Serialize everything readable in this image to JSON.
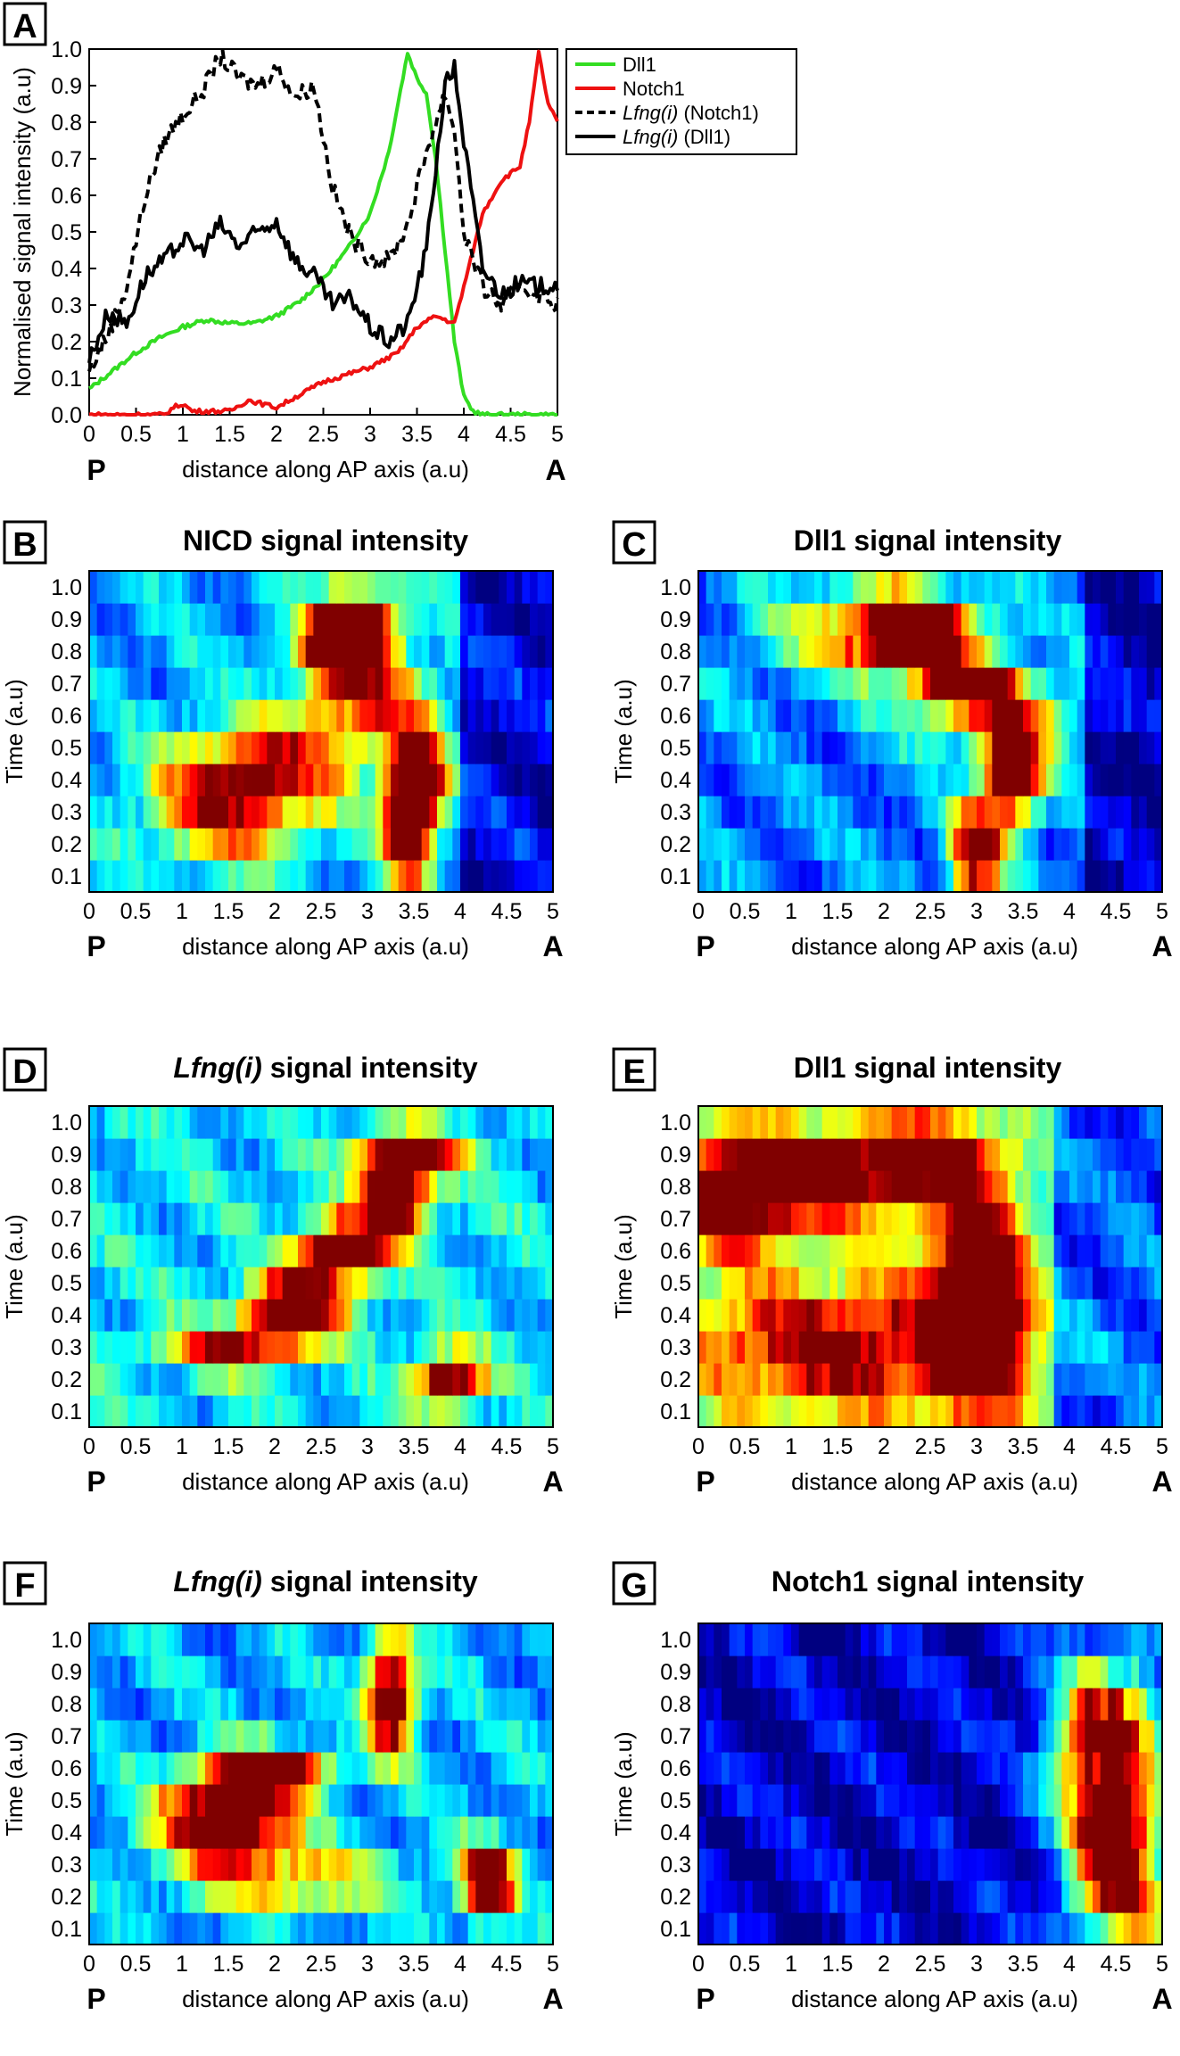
{
  "figure": {
    "p_label": "P",
    "a_label": "A",
    "xlabel": "distance along AP axis (a.u)",
    "ylabel_time": "Time (a.u)"
  },
  "colors": {
    "dll1": "#33dd22",
    "notch1": "#ee1111",
    "lfng": "#000000"
  },
  "chart_data": [
    {
      "panel": "A",
      "type": "line",
      "title": "",
      "xlabel": "distance along AP axis (a.u)",
      "ylabel": "Normalised signal intensity (a.u)",
      "xlim": [
        0,
        5
      ],
      "ylim": [
        0,
        1
      ],
      "xticks": [
        "0",
        "0.5",
        "1",
        "1.5",
        "2",
        "2.5",
        "3",
        "3.5",
        "4",
        "4.5",
        "5"
      ],
      "yticks": [
        "0.0",
        "0.1",
        "0.2",
        "0.3",
        "0.4",
        "0.5",
        "0.6",
        "0.7",
        "0.8",
        "0.9",
        "1.0"
      ],
      "series": [
        {
          "name": "Dll1",
          "color": "#33dd22",
          "style": "solid",
          "x": [
            0,
            0.25,
            0.5,
            0.75,
            1,
            1.25,
            1.5,
            1.75,
            2,
            2.25,
            2.5,
            2.75,
            3,
            3.2,
            3.4,
            3.5,
            3.6,
            3.7,
            3.8,
            3.9,
            4.0,
            4.1,
            4.2,
            4.5,
            5
          ],
          "y": [
            0.07,
            0.12,
            0.17,
            0.21,
            0.24,
            0.26,
            0.25,
            0.25,
            0.27,
            0.31,
            0.37,
            0.45,
            0.55,
            0.72,
            0.99,
            0.92,
            0.88,
            0.7,
            0.45,
            0.2,
            0.05,
            0.01,
            0,
            0,
            0
          ]
        },
        {
          "name": "Notch1",
          "color": "#ee1111",
          "style": "solid",
          "x": [
            0,
            0.8,
            0.9,
            1.0,
            1.1,
            1.5,
            1.7,
            2.0,
            2.5,
            3.0,
            3.3,
            3.5,
            3.7,
            3.9,
            4.0,
            4.2,
            4.4,
            4.6,
            4.7,
            4.8,
            4.9,
            5
          ],
          "y": [
            0,
            0,
            0.02,
            0.03,
            0.01,
            0.01,
            0.04,
            0.02,
            0.09,
            0.13,
            0.17,
            0.24,
            0.27,
            0.25,
            0.35,
            0.55,
            0.64,
            0.68,
            0.8,
            0.99,
            0.85,
            0.8
          ]
        },
        {
          "name": "Lfng(i) (Notch1)",
          "color": "#000000",
          "style": "dashed",
          "x": [
            0,
            0.2,
            0.4,
            0.6,
            0.8,
            1.0,
            1.2,
            1.4,
            1.6,
            1.8,
            2.0,
            2.2,
            2.4,
            2.6,
            2.8,
            3.0,
            3.2,
            3.4,
            3.6,
            3.8,
            3.9,
            4.0,
            4.2,
            4.4,
            4.6,
            4.8,
            5
          ],
          "y": [
            0.12,
            0.22,
            0.35,
            0.6,
            0.75,
            0.82,
            0.88,
            0.98,
            0.92,
            0.9,
            0.95,
            0.87,
            0.9,
            0.62,
            0.48,
            0.43,
            0.42,
            0.52,
            0.72,
            0.88,
            0.78,
            0.5,
            0.35,
            0.3,
            0.35,
            0.33,
            0.3
          ]
        },
        {
          "name": "Lfng(i) (Dll1)",
          "color": "#000000",
          "style": "solid",
          "x": [
            0,
            0.2,
            0.4,
            0.6,
            0.8,
            1.0,
            1.2,
            1.4,
            1.6,
            1.8,
            2.0,
            2.2,
            2.4,
            2.6,
            2.8,
            3.0,
            3.2,
            3.4,
            3.6,
            3.8,
            3.9,
            4.0,
            4.2,
            4.4,
            4.6,
            4.8,
            5
          ],
          "y": [
            0.15,
            0.28,
            0.25,
            0.38,
            0.42,
            0.48,
            0.45,
            0.52,
            0.46,
            0.5,
            0.53,
            0.42,
            0.38,
            0.3,
            0.32,
            0.24,
            0.2,
            0.25,
            0.45,
            0.9,
            0.95,
            0.75,
            0.4,
            0.33,
            0.36,
            0.35,
            0.36
          ]
        }
      ]
    },
    {
      "panel": "B",
      "type": "heatmap",
      "title": "NICD signal intensity",
      "xlabel": "distance along AP axis (a.u)",
      "ylabel": "Time (a.u)",
      "xlim": [
        0,
        5
      ],
      "rows": [
        "0.1",
        "0.2",
        "0.3",
        "0.4",
        "0.5",
        "0.6",
        "0.7",
        "0.8",
        "0.9",
        "1.0"
      ],
      "blobs": [
        [
          2.85,
          0.88,
          0.3,
          0.08,
          1.0
        ],
        [
          2.7,
          0.8,
          0.3,
          0.06,
          0.95
        ],
        [
          3.45,
          0.25,
          0.18,
          0.12,
          1.0
        ],
        [
          3.55,
          0.4,
          0.2,
          0.1,
          0.85
        ],
        [
          1.5,
          0.3,
          0.6,
          0.12,
          0.55
        ],
        [
          2.0,
          0.45,
          0.7,
          0.1,
          0.5
        ],
        [
          3.0,
          0.65,
          0.5,
          0.1,
          0.5
        ]
      ],
      "base": 0.3,
      "blue_right_from": 4.0
    },
    {
      "panel": "C",
      "type": "heatmap",
      "title": "Dll1 signal intensity",
      "xlabel": "distance along AP axis (a.u)",
      "ylabel": "Time (a.u)",
      "xlim": [
        0,
        5
      ],
      "rows": [
        "0.1",
        "0.2",
        "0.3",
        "0.4",
        "0.5",
        "0.6",
        "0.7",
        "0.8",
        "0.9",
        "1.0"
      ],
      "blobs": [
        [
          2.3,
          0.86,
          0.35,
          0.07,
          0.95
        ],
        [
          2.9,
          0.7,
          0.35,
          0.05,
          0.85
        ],
        [
          3.4,
          0.42,
          0.22,
          0.1,
          1.0
        ],
        [
          3.0,
          0.18,
          0.2,
          0.1,
          0.95
        ],
        [
          2.0,
          0.86,
          0.8,
          0.1,
          0.55
        ],
        [
          3.2,
          0.6,
          0.6,
          0.08,
          0.5
        ]
      ],
      "base": 0.25,
      "blue_right_from": 4.2
    },
    {
      "panel": "D",
      "type": "heatmap",
      "title": "Lfng(i) signal intensity",
      "xlabel": "distance along AP axis (a.u)",
      "ylabel": "Time (a.u)",
      "xlim": [
        0,
        5
      ],
      "rows": [
        "0.1",
        "0.2",
        "0.3",
        "0.4",
        "0.5",
        "0.6",
        "0.7",
        "0.8",
        "0.9",
        "1.0"
      ],
      "blobs": [
        [
          3.3,
          0.78,
          0.25,
          0.1,
          1.0
        ],
        [
          2.7,
          0.6,
          0.3,
          0.07,
          0.95
        ],
        [
          2.2,
          0.42,
          0.35,
          0.07,
          1.0
        ],
        [
          3.9,
          0.2,
          0.25,
          0.06,
          0.9
        ],
        [
          1.5,
          0.3,
          0.5,
          0.05,
          0.6
        ],
        [
          3.5,
          0.9,
          0.4,
          0.05,
          0.55
        ]
      ],
      "base": 0.35,
      "blue_right_from": 5.0
    },
    {
      "panel": "E",
      "type": "heatmap",
      "title": "Dll1 signal intensity",
      "xlabel": "distance along AP axis (a.u)",
      "ylabel": "Time (a.u)",
      "xlim": [
        0,
        5
      ],
      "rows": [
        "0.1",
        "0.2",
        "0.3",
        "0.4",
        "0.5",
        "0.6",
        "0.7",
        "0.8",
        "0.9",
        "1.0"
      ],
      "blobs": [
        [
          0.4,
          0.78,
          0.5,
          0.12,
          0.9
        ],
        [
          1.8,
          0.85,
          0.8,
          0.1,
          0.8
        ],
        [
          3.0,
          0.45,
          0.35,
          0.25,
          0.95
        ],
        [
          2.6,
          0.93,
          0.3,
          0.04,
          0.9
        ],
        [
          1.5,
          0.3,
          1.2,
          0.15,
          0.65
        ]
      ],
      "base": 0.4,
      "blue_right_from": 3.8
    },
    {
      "panel": "F",
      "type": "heatmap",
      "title": "Lfng(i) signal intensity",
      "xlabel": "distance along AP axis (a.u)",
      "ylabel": "Time (a.u)",
      "xlim": [
        0,
        5
      ],
      "rows": [
        "0.1",
        "0.2",
        "0.3",
        "0.4",
        "0.5",
        "0.6",
        "0.7",
        "0.8",
        "0.9",
        "1.0"
      ],
      "blobs": [
        [
          3.25,
          0.82,
          0.18,
          0.12,
          1.0
        ],
        [
          1.5,
          0.45,
          0.5,
          0.1,
          1.0
        ],
        [
          2.0,
          0.6,
          0.4,
          0.05,
          0.85
        ],
        [
          4.3,
          0.25,
          0.2,
          0.08,
          1.0
        ],
        [
          2.2,
          0.25,
          0.8,
          0.05,
          0.5
        ]
      ],
      "base": 0.3,
      "blue_right_from": 5.0
    },
    {
      "panel": "G",
      "type": "heatmap",
      "title": "Notch1 signal intensity",
      "xlabel": "distance along AP axis (a.u)",
      "ylabel": "Time (a.u)",
      "xlim": [
        0,
        5
      ],
      "rows": [
        "0.1",
        "0.2",
        "0.3",
        "0.4",
        "0.5",
        "0.6",
        "0.7",
        "0.8",
        "0.9",
        "1.0"
      ],
      "blobs": [
        [
          4.4,
          0.65,
          0.4,
          0.2,
          1.05
        ],
        [
          4.5,
          0.35,
          0.3,
          0.1,
          0.9
        ],
        [
          4.7,
          0.15,
          0.5,
          0.08,
          0.65
        ]
      ],
      "base": 0.08,
      "blue_right_from": 9.0
    }
  ]
}
